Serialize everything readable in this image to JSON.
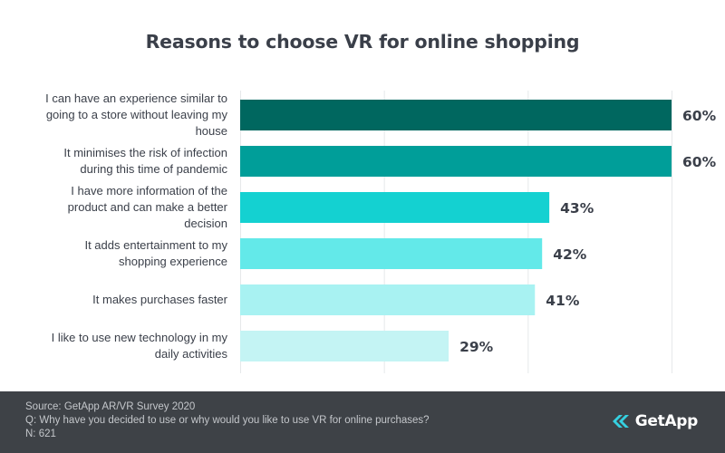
{
  "chart_data": {
    "type": "bar",
    "orientation": "horizontal",
    "title": "Reasons to choose VR for online shopping",
    "categories": [
      [
        "I can have an experience similar to",
        "going to a store without leaving my",
        "house"
      ],
      [
        "It minimises the risk of infection",
        "during this time of pandemic"
      ],
      [
        "I have more information of the",
        "product and can make a better",
        "decision"
      ],
      [
        "It adds entertainment to my",
        "shopping experience"
      ],
      [
        "It makes purchases faster"
      ],
      [
        "I like to use new technology in my",
        "daily activities"
      ]
    ],
    "values": [
      60,
      60,
      43,
      42,
      41,
      29
    ],
    "value_labels": [
      "60%",
      "60%",
      "43%",
      "42%",
      "41%",
      "29%"
    ],
    "bar_colors": [
      "#00675f",
      "#009e99",
      "#14d1d1",
      "#63e9e9",
      "#a8f2f2",
      "#c4f4f4"
    ],
    "xlim": [
      0,
      60
    ],
    "grid": true,
    "xlabel": "",
    "ylabel": ""
  },
  "footer": {
    "source": "Source: GetApp AR/VR Survey 2020",
    "question": "Q: Why have you decided to use or why would you like to use VR for online purchases?",
    "n": "N: 621"
  },
  "brand": {
    "name": "GetApp",
    "mark_color": "#35d0e0"
  }
}
